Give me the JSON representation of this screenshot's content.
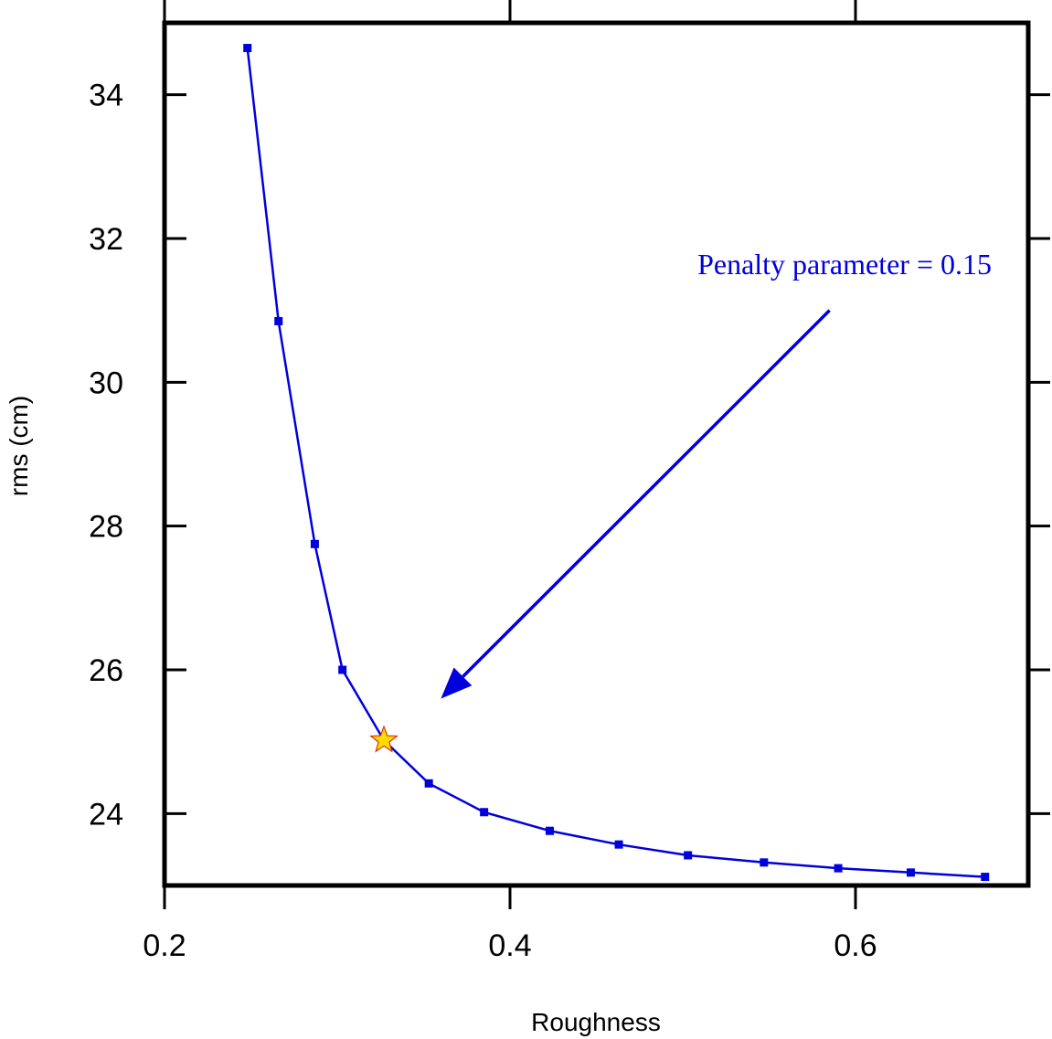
{
  "chart_data": {
    "type": "line",
    "title": "",
    "xlabel": "Roughness",
    "ylabel": "rms (cm)",
    "xlim": [
      0.2,
      0.7
    ],
    "ylim": [
      23.0,
      35.0
    ],
    "xticks": [
      0.2,
      0.4,
      0.6
    ],
    "xtick_labels": [
      "0.2",
      "0.4",
      "0.6"
    ],
    "yticks": [
      24,
      26,
      28,
      30,
      32,
      34
    ],
    "ytick_labels": [
      "24",
      "26",
      "28",
      "30",
      "32",
      "34"
    ],
    "grid": false,
    "legend": "none",
    "series": [
      {
        "color": "#0000dd",
        "marker": "square",
        "x": [
          0.248,
          0.266,
          0.287,
          0.303,
          0.353,
          0.385,
          0.423,
          0.463,
          0.503,
          0.547,
          0.59,
          0.632,
          0.675
        ],
        "y": [
          34.65,
          30.85,
          27.75,
          26.0,
          24.42,
          24.02,
          23.76,
          23.57,
          23.42,
          23.32,
          23.24,
          23.18,
          23.12
        ]
      }
    ],
    "highlight": {
      "marker": "star",
      "color": "#ffdd00",
      "edge_color": "#e03000",
      "x": 0.327,
      "y": 25.02
    },
    "annotations": [
      {
        "text": "Penalty parameter = 0.15",
        "color": "#0000dd",
        "arrow_from": [
          0.585,
          31.0
        ],
        "arrow_to": [
          0.36,
          25.6
        ]
      }
    ]
  }
}
